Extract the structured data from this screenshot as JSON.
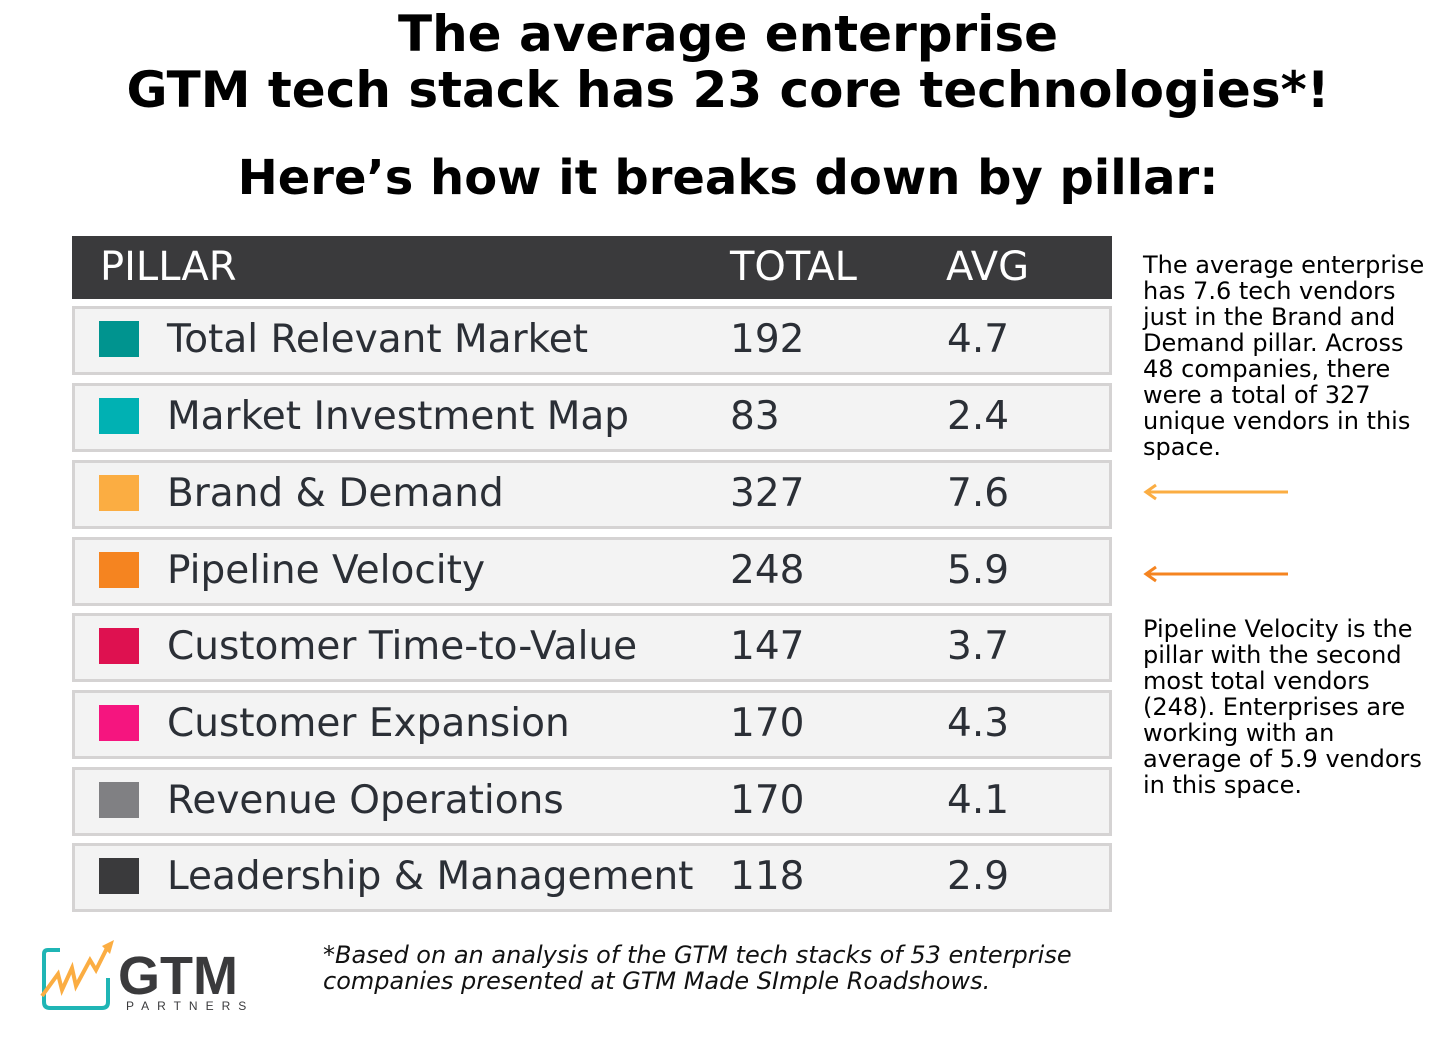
{
  "title": {
    "line1": "The average enterprise",
    "line2": "GTM tech stack has 23 core technologies*!",
    "subtitle": "Here’s how it breaks down by pillar:"
  },
  "chart_data": {
    "type": "table",
    "columns": [
      "PILLAR",
      "TOTAL",
      "AVG"
    ],
    "rows": [
      {
        "pillar": "Total Relevant Market",
        "total": "192",
        "avg": "4.7",
        "color": "#00948f"
      },
      {
        "pillar": "Market Investment Map",
        "total": "83",
        "avg": "2.4",
        "color": "#00b1b3"
      },
      {
        "pillar": "Brand & Demand",
        "total": "327",
        "avg": "7.6",
        "color": "#fbad42"
      },
      {
        "pillar": "Pipeline Velocity",
        "total": "248",
        "avg": "5.9",
        "color": "#f58420"
      },
      {
        "pillar": "Customer Time-to-Value",
        "total": "147",
        "avg": "3.7",
        "color": "#de1150"
      },
      {
        "pillar": "Customer Expansion",
        "total": "170",
        "avg": "4.3",
        "color": "#f5157f"
      },
      {
        "pillar": "Revenue Operations",
        "total": "170",
        "avg": "4.1",
        "color": "#808083"
      },
      {
        "pillar": "Leadership & Management",
        "total": "118",
        "avg": "2.9",
        "color": "#3a3a3c"
      }
    ]
  },
  "notes": {
    "brand": "The average enterprise has 7.6 tech vendors just in the Brand and Demand pillar. Across 48 companies, there were a total of 327 unique vendors in this space.",
    "pipeline": "Pipeline Velocity is the pillar with the second most total vendors (248). Enterprises are working with an average of 5.9 vendors in this space.",
    "brand_arrow_color": "#fbad42",
    "pipeline_arrow_color": "#f58420"
  },
  "footnote": "*Based on an analysis of the GTM tech stacks of 53 enterprise companies presented at GTM Made SImple Roadshows.",
  "logo": {
    "name": "GTM",
    "sub": "PARTNERS"
  }
}
